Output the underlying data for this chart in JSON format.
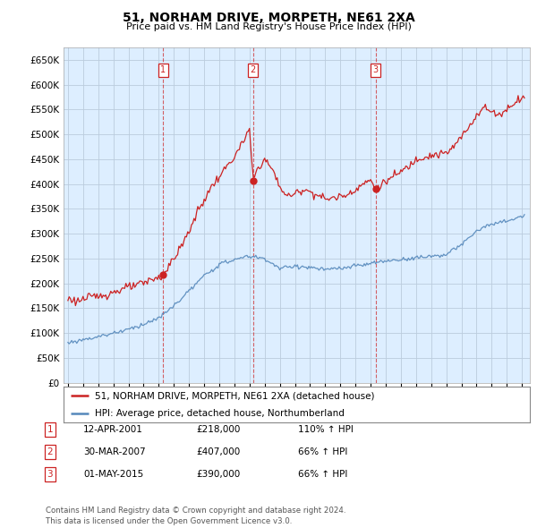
{
  "title": "51, NORHAM DRIVE, MORPETH, NE61 2XA",
  "subtitle": "Price paid vs. HM Land Registry's House Price Index (HPI)",
  "ylim": [
    0,
    675000
  ],
  "yticks": [
    0,
    50000,
    100000,
    150000,
    200000,
    250000,
    300000,
    350000,
    400000,
    450000,
    500000,
    550000,
    600000,
    650000
  ],
  "xlim_start": 1994.7,
  "xlim_end": 2025.5,
  "legend_line1": "51, NORHAM DRIVE, MORPETH, NE61 2XA (detached house)",
  "legend_line2": "HPI: Average price, detached house, Northumberland",
  "sale1_date": 2001.28,
  "sale1_price": 218000,
  "sale1_label": "1",
  "sale2_date": 2007.24,
  "sale2_price": 407000,
  "sale2_label": "2",
  "sale3_date": 2015.33,
  "sale3_price": 390000,
  "sale3_label": "3",
  "table_data": [
    [
      "1",
      "12-APR-2001",
      "£218,000",
      "110% ↑ HPI"
    ],
    [
      "2",
      "30-MAR-2007",
      "£407,000",
      "66% ↑ HPI"
    ],
    [
      "3",
      "01-MAY-2015",
      "£390,000",
      "66% ↑ HPI"
    ]
  ],
  "footnote": "Contains HM Land Registry data © Crown copyright and database right 2024.\nThis data is licensed under the Open Government Licence v3.0.",
  "red_color": "#cc2222",
  "blue_color": "#5588bb",
  "chart_bg": "#ddeeff",
  "grid_color": "#bbccdd",
  "bg_color": "#ffffff",
  "prop_anchors_t": [
    1995.0,
    1995.5,
    1996.0,
    1996.5,
    1997.0,
    1997.5,
    1998.0,
    1998.5,
    1999.0,
    1999.5,
    2000.0,
    2000.5,
    2001.0,
    2001.28,
    2001.5,
    2002.0,
    2002.5,
    2003.0,
    2003.5,
    2004.0,
    2004.5,
    2005.0,
    2005.5,
    2006.0,
    2006.5,
    2007.0,
    2007.24,
    2007.5,
    2008.0,
    2008.5,
    2009.0,
    2009.5,
    2010.0,
    2010.5,
    2011.0,
    2011.5,
    2012.0,
    2012.5,
    2013.0,
    2013.5,
    2014.0,
    2014.5,
    2015.0,
    2015.33,
    2015.5,
    2016.0,
    2016.5,
    2017.0,
    2017.5,
    2018.0,
    2018.5,
    2019.0,
    2019.5,
    2020.0,
    2020.5,
    2021.0,
    2021.5,
    2022.0,
    2022.5,
    2023.0,
    2023.5,
    2024.0,
    2024.5,
    2025.0
  ],
  "prop_anchors_v": [
    170000,
    165000,
    168000,
    172000,
    175000,
    178000,
    182000,
    188000,
    192000,
    196000,
    200000,
    208000,
    212000,
    218000,
    228000,
    250000,
    275000,
    305000,
    340000,
    368000,
    395000,
    415000,
    435000,
    455000,
    480000,
    510000,
    407000,
    430000,
    450000,
    430000,
    395000,
    375000,
    380000,
    390000,
    385000,
    378000,
    370000,
    372000,
    375000,
    380000,
    390000,
    400000,
    408000,
    390000,
    395000,
    405000,
    415000,
    425000,
    435000,
    450000,
    455000,
    458000,
    460000,
    462000,
    475000,
    495000,
    515000,
    540000,
    555000,
    545000,
    540000,
    550000,
    565000,
    575000
  ],
  "hpi_anchors_t": [
    1995.0,
    1996.0,
    1997.0,
    1998.0,
    1999.0,
    2000.0,
    2001.0,
    2002.0,
    2003.0,
    2004.0,
    2005.0,
    2006.0,
    2007.0,
    2008.0,
    2009.0,
    2010.0,
    2011.0,
    2012.0,
    2013.0,
    2014.0,
    2015.0,
    2016.0,
    2017.0,
    2018.0,
    2019.0,
    2020.0,
    2021.0,
    2022.0,
    2022.5,
    2023.0,
    2023.5,
    2024.0,
    2024.5,
    2025.0
  ],
  "hpi_anchors_v": [
    80000,
    87000,
    93000,
    100000,
    108000,
    118000,
    130000,
    155000,
    185000,
    215000,
    238000,
    248000,
    255000,
    250000,
    230000,
    235000,
    232000,
    228000,
    230000,
    235000,
    240000,
    245000,
    248000,
    252000,
    255000,
    258000,
    278000,
    305000,
    315000,
    318000,
    322000,
    326000,
    330000,
    335000
  ]
}
